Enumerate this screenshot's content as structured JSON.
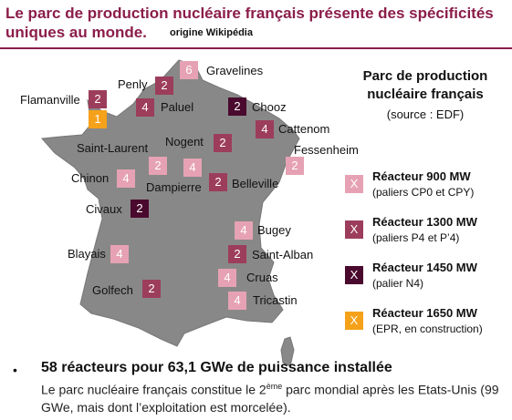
{
  "header": {
    "title": "Le parc de production nucléaire français présente des spécificités uniques au monde.",
    "source": "origine Wikipédia",
    "accent": "#8b1d4a"
  },
  "map": {
    "sites": [
      {
        "name": "Gravelines",
        "count": "6",
        "type": "900"
      },
      {
        "name": "Penly",
        "count": "2",
        "type": "1300"
      },
      {
        "name": "Paluel",
        "count": "4",
        "type": "1300"
      },
      {
        "name": "Flamanville",
        "count": "2",
        "type": "1300"
      },
      {
        "name": "Flamanville",
        "count": "1",
        "type": "1650"
      },
      {
        "name": "Chooz",
        "count": "2",
        "type": "1450"
      },
      {
        "name": "Cattenom",
        "count": "4",
        "type": "1300"
      },
      {
        "name": "Nogent",
        "count": "2",
        "type": "1300"
      },
      {
        "name": "Fessenheim",
        "count": "2",
        "type": "900"
      },
      {
        "name": "Saint-Laurent",
        "count": "2",
        "type": "900"
      },
      {
        "name": "Chinon",
        "count": "4",
        "type": "900"
      },
      {
        "name": "Dampierre",
        "count": "4",
        "type": "900"
      },
      {
        "name": "Belleville",
        "count": "2",
        "type": "1300"
      },
      {
        "name": "Civaux",
        "count": "2",
        "type": "1450"
      },
      {
        "name": "Bugey",
        "count": "4",
        "type": "900"
      },
      {
        "name": "Blayais",
        "count": "4",
        "type": "900"
      },
      {
        "name": "Saint-Alban",
        "count": "2",
        "type": "1300"
      },
      {
        "name": "Cruas",
        "count": "4",
        "type": "900"
      },
      {
        "name": "Golfech",
        "count": "2",
        "type": "1300"
      },
      {
        "name": "Tricastin",
        "count": "4",
        "type": "900"
      }
    ]
  },
  "legend": {
    "title": "Parc de production nucléaire français",
    "source": "(source : EDF)",
    "items": [
      {
        "symbol": "X",
        "name": "Réacteur 900 MW",
        "sub": "(paliers CP0 et CPY)",
        "color": "#e6a2b4"
      },
      {
        "symbol": "X",
        "name": "Réacteur 1300 MW",
        "sub": "(paliers P4 et P’4)",
        "color": "#9d3d5c"
      },
      {
        "symbol": "X",
        "name": "Réacteur 1450 MW",
        "sub": "(palier N4)",
        "color": "#4a0a2e"
      },
      {
        "symbol": "X",
        "name": "Réacteur 1650 MW",
        "sub": "(EPR, en construction)",
        "color": "#f5a11a"
      }
    ]
  },
  "bullet": {
    "dot": "•",
    "headline": "58 réacteurs pour 63,1 GWe de puissance installée",
    "body_pre": "Le parc nucléaire français constitue le 2",
    "body_sup": "ème",
    "body_post": " parc mondial après les Etats-Unis (99 GWe, mais dont l’exploitation est morcelée)."
  }
}
